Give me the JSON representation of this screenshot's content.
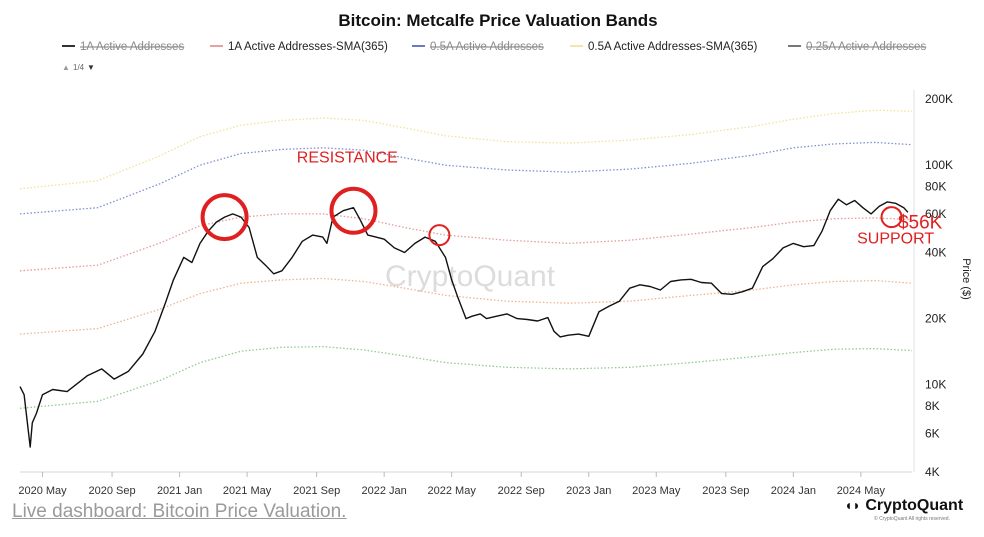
{
  "chart_data": {
    "type": "line",
    "title": "Bitcoin: Metcalfe Price Valuation Bands",
    "ylabel": "Price ($)",
    "yscale": "log",
    "ylim": [
      4000,
      220000
    ],
    "xlim": [
      2020.22,
      2024.58
    ],
    "x_ticks": [
      {
        "label": "2020 May",
        "x": 2020.33
      },
      {
        "label": "2020 Sep",
        "x": 2020.67
      },
      {
        "label": "2021 Jan",
        "x": 2021.0
      },
      {
        "label": "2021 May",
        "x": 2021.33
      },
      {
        "label": "2021 Sep",
        "x": 2021.67
      },
      {
        "label": "2022 Jan",
        "x": 2022.0
      },
      {
        "label": "2022 May",
        "x": 2022.33
      },
      {
        "label": "2022 Sep",
        "x": 2022.67
      },
      {
        "label": "2023 Jan",
        "x": 2023.0
      },
      {
        "label": "2023 May",
        "x": 2023.33
      },
      {
        "label": "2023 Sep",
        "x": 2023.67
      },
      {
        "label": "2024 Jan",
        "x": 2024.0
      },
      {
        "label": "2024 May",
        "x": 2024.33
      }
    ],
    "y_ticks": [
      {
        "label": "200K",
        "v": 200000
      },
      {
        "label": "100K",
        "v": 100000
      },
      {
        "label": "80K",
        "v": 80000
      },
      {
        "label": "60K",
        "v": 60000
      },
      {
        "label": "40K",
        "v": 40000
      },
      {
        "label": "20K",
        "v": 20000
      },
      {
        "label": "10K",
        "v": 10000
      },
      {
        "label": "8K",
        "v": 8000
      },
      {
        "label": "6K",
        "v": 6000
      },
      {
        "label": "4K",
        "v": 4000
      }
    ],
    "legend": {
      "placement": "top",
      "pager": "1/4",
      "items": [
        {
          "name": "1A Active Addresses",
          "color": "#333333",
          "hidden": true
        },
        {
          "name": "1A Active Addresses-SMA(365)",
          "color": "#e8a0a0",
          "hidden": false
        },
        {
          "name": "0.5A Active Addresses",
          "color": "#6b78c8",
          "hidden": true
        },
        {
          "name": "0.5A Active Addresses-SMA(365)",
          "color": "#f3e6a6",
          "hidden": false
        },
        {
          "name": "0.25A Active Addresses",
          "color": "#777777",
          "hidden": true
        }
      ]
    },
    "series": [
      {
        "name": "Top band",
        "color": "#f0e29a",
        "style": "dotted",
        "x": [
          2020.22,
          2020.6,
          2020.9,
          2021.1,
          2021.3,
          2021.5,
          2021.7,
          2021.9,
          2022.1,
          2022.3,
          2022.6,
          2022.9,
          2023.2,
          2023.5,
          2023.8,
          2024.0,
          2024.2,
          2024.4,
          2024.58
        ],
        "y": [
          78000,
          85000,
          110000,
          135000,
          152000,
          160000,
          164000,
          160000,
          148000,
          136000,
          128000,
          126000,
          130000,
          138000,
          150000,
          162000,
          172000,
          178000,
          176000
        ]
      },
      {
        "name": "Upper band",
        "color": "#7f8fd0",
        "style": "dotted",
        "x": [
          2020.22,
          2020.6,
          2020.9,
          2021.1,
          2021.3,
          2021.5,
          2021.7,
          2021.9,
          2022.1,
          2022.3,
          2022.6,
          2022.9,
          2023.2,
          2023.5,
          2023.8,
          2024.0,
          2024.2,
          2024.4,
          2024.58
        ],
        "y": [
          60000,
          64000,
          82000,
          100000,
          113000,
          118000,
          120000,
          117000,
          108000,
          100000,
          95000,
          93000,
          96000,
          102000,
          111000,
          120000,
          125000,
          127000,
          124000
        ]
      },
      {
        "name": "Middle band",
        "color": "#e39b9b",
        "style": "dotted",
        "x": [
          2020.22,
          2020.6,
          2020.9,
          2021.1,
          2021.3,
          2021.5,
          2021.7,
          2021.9,
          2022.1,
          2022.3,
          2022.6,
          2022.9,
          2023.2,
          2023.5,
          2023.8,
          2024.0,
          2024.2,
          2024.4,
          2024.58
        ],
        "y": [
          33000,
          35000,
          44000,
          53000,
          58000,
          60000,
          60000,
          57000,
          52000,
          48000,
          45500,
          44000,
          45500,
          48500,
          52000,
          55000,
          57000,
          57500,
          56500
        ]
      },
      {
        "name": "Lower band",
        "color": "#f0b38a",
        "style": "dotted",
        "x": [
          2020.22,
          2020.6,
          2020.9,
          2021.1,
          2021.3,
          2021.5,
          2021.7,
          2021.9,
          2022.1,
          2022.3,
          2022.6,
          2022.9,
          2023.2,
          2023.5,
          2023.8,
          2024.0,
          2024.2,
          2024.4,
          2024.58
        ],
        "y": [
          17000,
          18000,
          22000,
          26000,
          29000,
          30000,
          30500,
          29500,
          27500,
          25500,
          24000,
          23500,
          24000,
          25500,
          27000,
          28500,
          29500,
          29800,
          29000
        ]
      },
      {
        "name": "Bottom band",
        "color": "#8fcc8f",
        "style": "dotted",
        "x": [
          2020.22,
          2020.6,
          2020.9,
          2021.1,
          2021.3,
          2021.5,
          2021.7,
          2021.9,
          2022.1,
          2022.3,
          2022.6,
          2022.9,
          2023.2,
          2023.5,
          2023.8,
          2024.0,
          2024.2,
          2024.4,
          2024.58
        ],
        "y": [
          7800,
          8400,
          10400,
          12600,
          14200,
          14800,
          14900,
          14400,
          13500,
          12600,
          12000,
          11800,
          12000,
          12600,
          13400,
          14000,
          14500,
          14600,
          14300
        ]
      },
      {
        "name": "BTC Price",
        "color": "#111111",
        "style": "solid",
        "x": [
          2020.22,
          2020.24,
          2020.27,
          2020.28,
          2020.3,
          2020.33,
          2020.38,
          2020.45,
          2020.55,
          2020.62,
          2020.68,
          2020.75,
          2020.82,
          2020.88,
          2020.93,
          2020.97,
          2021.02,
          2021.06,
          2021.1,
          2021.14,
          2021.18,
          2021.22,
          2021.26,
          2021.3,
          2021.34,
          2021.38,
          2021.42,
          2021.46,
          2021.5,
          2021.55,
          2021.6,
          2021.65,
          2021.7,
          2021.72,
          2021.75,
          2021.8,
          2021.85,
          2021.88,
          2021.92,
          2021.96,
          2022.0,
          2022.05,
          2022.1,
          2022.15,
          2022.2,
          2022.25,
          2022.3,
          2022.33,
          2022.36,
          2022.4,
          2022.43,
          2022.47,
          2022.5,
          2022.55,
          2022.6,
          2022.65,
          2022.7,
          2022.75,
          2022.8,
          2022.83,
          2022.86,
          2022.9,
          2022.95,
          2023.0,
          2023.05,
          2023.1,
          2023.15,
          2023.2,
          2023.25,
          2023.3,
          2023.35,
          2023.4,
          2023.45,
          2023.5,
          2023.55,
          2023.6,
          2023.65,
          2023.7,
          2023.75,
          2023.8,
          2023.85,
          2023.9,
          2023.95,
          2024.0,
          2024.05,
          2024.1,
          2024.14,
          2024.18,
          2024.22,
          2024.26,
          2024.3,
          2024.34,
          2024.38,
          2024.42,
          2024.46,
          2024.5,
          2024.54,
          2024.56
        ],
        "y": [
          9800,
          9000,
          5200,
          6700,
          7400,
          9000,
          9500,
          9300,
          11000,
          11800,
          10600,
          11500,
          13800,
          17500,
          23500,
          30000,
          38000,
          36000,
          44000,
          50000,
          55000,
          58000,
          60000,
          58000,
          52000,
          38000,
          35000,
          32000,
          33000,
          38000,
          45000,
          48000,
          47000,
          44000,
          58000,
          62000,
          64000,
          57000,
          48000,
          47000,
          46000,
          42000,
          40000,
          44000,
          47000,
          45000,
          38000,
          30000,
          25000,
          20000,
          20500,
          21000,
          20000,
          20500,
          21000,
          20000,
          19800,
          19500,
          20200,
          17500,
          16500,
          16800,
          17000,
          16600,
          21500,
          22800,
          24000,
          27500,
          28500,
          28000,
          27000,
          29500,
          30000,
          30200,
          29200,
          29000,
          26000,
          25800,
          26500,
          27500,
          34500,
          37500,
          42000,
          44000,
          42500,
          43000,
          50000,
          62000,
          70000,
          66000,
          69000,
          64000,
          60000,
          65000,
          68000,
          67000,
          64000,
          61000
        ]
      }
    ],
    "annotations": [
      {
        "label": "RESISTANCE",
        "color": "#e02020",
        "x": 2021.82,
        "v": 103000
      },
      {
        "label": "$56K",
        "color": "#e02020",
        "x": 2024.62,
        "v": 51500
      },
      {
        "label": "SUPPORT",
        "color": "#e02020",
        "x": 2024.5,
        "v": 44000
      }
    ],
    "markers": [
      {
        "name": "resistance-circle-1",
        "x": 2021.22,
        "v": 58000,
        "size": "large"
      },
      {
        "name": "resistance-circle-2",
        "x": 2021.85,
        "v": 62000,
        "size": "large"
      },
      {
        "name": "resistance-circle-3",
        "x": 2022.27,
        "v": 48000,
        "size": "small"
      },
      {
        "name": "support-circle",
        "x": 2024.48,
        "v": 58000,
        "size": "small"
      }
    ],
    "watermark": "CryptoQuant"
  },
  "footer": {
    "link": "Live dashboard: Bitcoin Price Valuation.",
    "brand": "CryptoQuant",
    "brand_sub": "© CryptoQuant All rights reserved."
  }
}
